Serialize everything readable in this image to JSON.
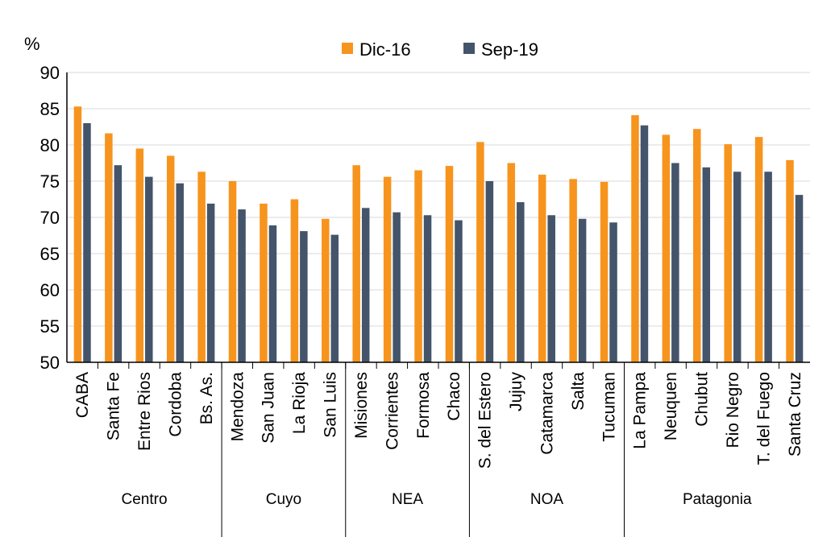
{
  "chart_data": {
    "type": "bar",
    "ylabel": "%",
    "ylim": [
      50,
      90
    ],
    "yticks": [
      50,
      55,
      60,
      65,
      70,
      75,
      80,
      85,
      90
    ],
    "grid": true,
    "legend_position": "top",
    "categories": [
      "CABA",
      "Santa Fe",
      "Entre Rios",
      "Cordoba",
      "Bs. As.",
      "Mendoza",
      "San Juan",
      "La Rioja",
      "San Luis",
      "Misiones",
      "Corrientes",
      "Formosa",
      "Chaco",
      "S. del Estero",
      "Jujuy",
      "Catamarca",
      "Salta",
      "Tucuman",
      "La Pampa",
      "Neuquen",
      "Chubut",
      "Rio Negro",
      "T. del Fuego",
      "Santa Cruz"
    ],
    "groups": [
      {
        "name": "Centro",
        "count": 5
      },
      {
        "name": "Cuyo",
        "count": 4
      },
      {
        "name": "NEA",
        "count": 4
      },
      {
        "name": "NOA",
        "count": 5
      },
      {
        "name": "Patagonia",
        "count": 6
      }
    ],
    "series": [
      {
        "name": "Dic-16",
        "color": "#F7941D",
        "values": [
          85.3,
          81.6,
          79.5,
          78.5,
          76.3,
          75.0,
          71.9,
          72.5,
          69.8,
          77.2,
          75.6,
          76.5,
          77.1,
          80.4,
          77.5,
          75.9,
          75.3,
          74.9,
          84.1,
          81.4,
          82.2,
          80.1,
          81.1,
          77.9
        ]
      },
      {
        "name": "Sep-19",
        "color": "#44546A",
        "values": [
          83.0,
          77.2,
          75.6,
          74.7,
          71.9,
          71.1,
          68.9,
          68.1,
          67.6,
          71.3,
          70.7,
          70.3,
          69.6,
          75.0,
          72.1,
          70.3,
          69.8,
          69.3,
          82.7,
          77.5,
          76.9,
          76.3,
          76.3,
          73.1
        ]
      }
    ]
  }
}
